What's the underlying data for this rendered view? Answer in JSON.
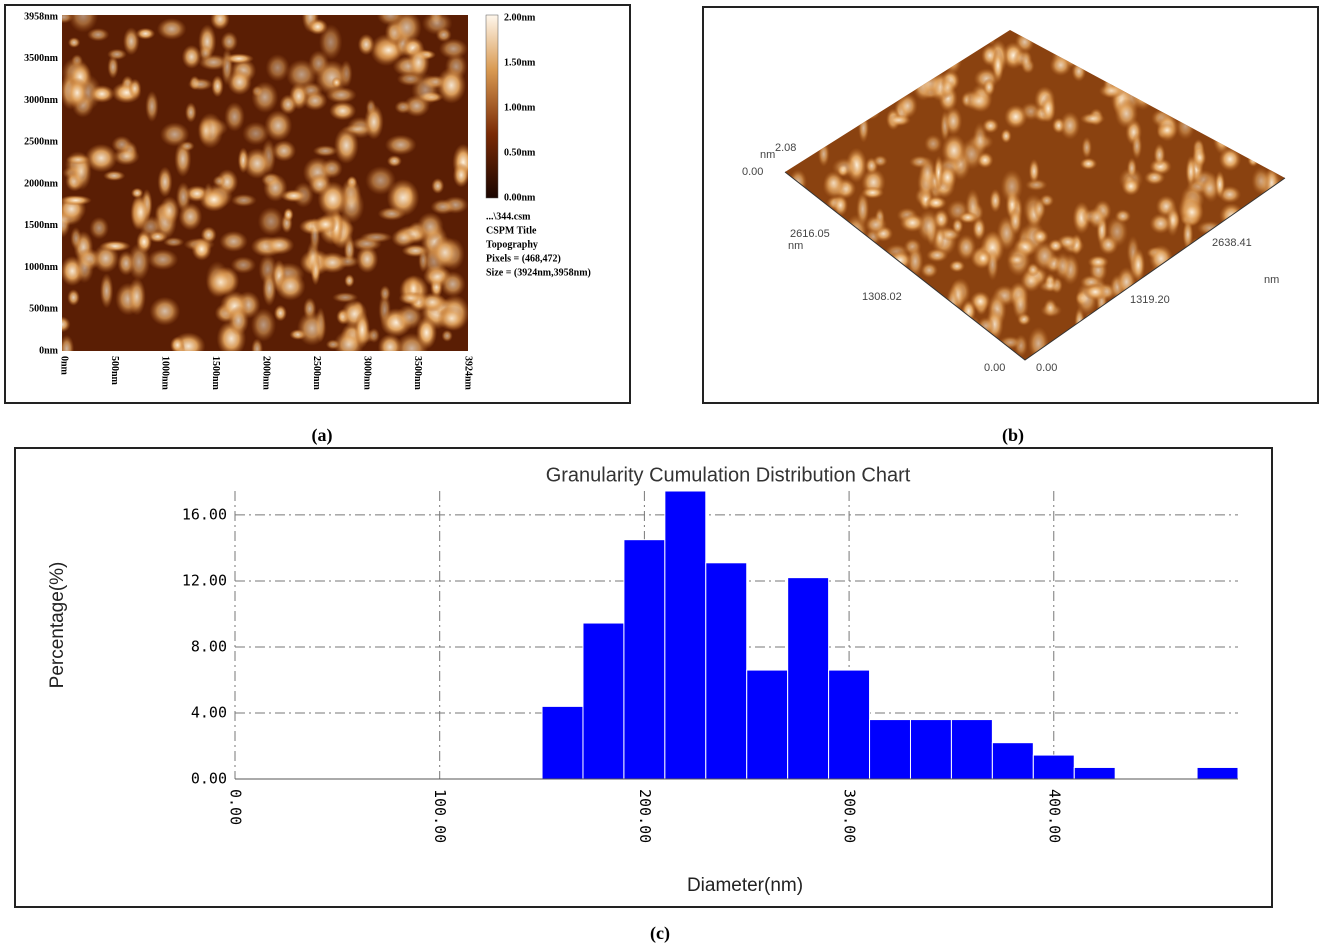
{
  "panel_a": {
    "y_labels": [
      "3958nm",
      "3500nm",
      "3000nm",
      "2500nm",
      "2000nm",
      "1500nm",
      "1000nm",
      "500nm",
      "0nm"
    ],
    "x_labels": [
      "0nm",
      "500nm",
      "1000nm",
      "1500nm",
      "2000nm",
      "2500nm",
      "3000nm",
      "3500nm",
      "3924nm"
    ],
    "colorbar_labels": [
      "2.00nm",
      "1.50nm",
      "1.00nm",
      "0.50nm",
      "0.00nm"
    ],
    "info": [
      "...\\344.csm",
      "CSPM Title",
      "Topography",
      "Pixels = (468,472)",
      "Size = (3924nm,3958nm)"
    ],
    "caption": "(a)"
  },
  "panel_b": {
    "z_unit": "nm",
    "z_max": "2.08",
    "z_min": "0.00",
    "left_max": "2616.05",
    "left_unit": "nm",
    "left_mid": "1308.02",
    "left_min": "0.00",
    "right_min": "0.00",
    "right_mid": "1319.20",
    "right_max": "2638.41",
    "right_unit": "nm",
    "caption": "(b)"
  },
  "panel_c": {
    "caption": "(c)"
  },
  "chart_data": {
    "type": "histogram",
    "title": "Granularity Cumulation Distribution  Chart",
    "x_label": "Diameter(nm)",
    "y_label": "Percentage(%)",
    "bins": [
      150,
      170,
      190,
      210,
      230,
      250,
      270,
      290,
      310,
      330,
      350,
      370,
      390,
      410,
      430,
      450,
      470,
      490
    ],
    "values": [
      4.4,
      9.45,
      14.5,
      17.45,
      13.1,
      6.6,
      12.2,
      6.6,
      3.6,
      3.6,
      3.6,
      2.2,
      1.45,
      0.7,
      0,
      0,
      0.7
    ],
    "color": "#0000ff",
    "xlim": [
      0,
      490
    ],
    "ylim": [
      0,
      17.45
    ],
    "xticks": [
      {
        "value": 0,
        "label": "0.00"
      },
      {
        "value": 100,
        "label": "100.00"
      },
      {
        "value": 200,
        "label": "200.00"
      },
      {
        "value": 300,
        "label": "300.00"
      },
      {
        "value": 400,
        "label": "400.00"
      }
    ],
    "yticks": [
      {
        "value": 0,
        "label": "0.00"
      },
      {
        "value": 4,
        "label": "4.00"
      },
      {
        "value": 8,
        "label": "8.00"
      },
      {
        "value": 12,
        "label": "12.00"
      },
      {
        "value": 16,
        "label": "16.00"
      }
    ],
    "grid": true
  }
}
